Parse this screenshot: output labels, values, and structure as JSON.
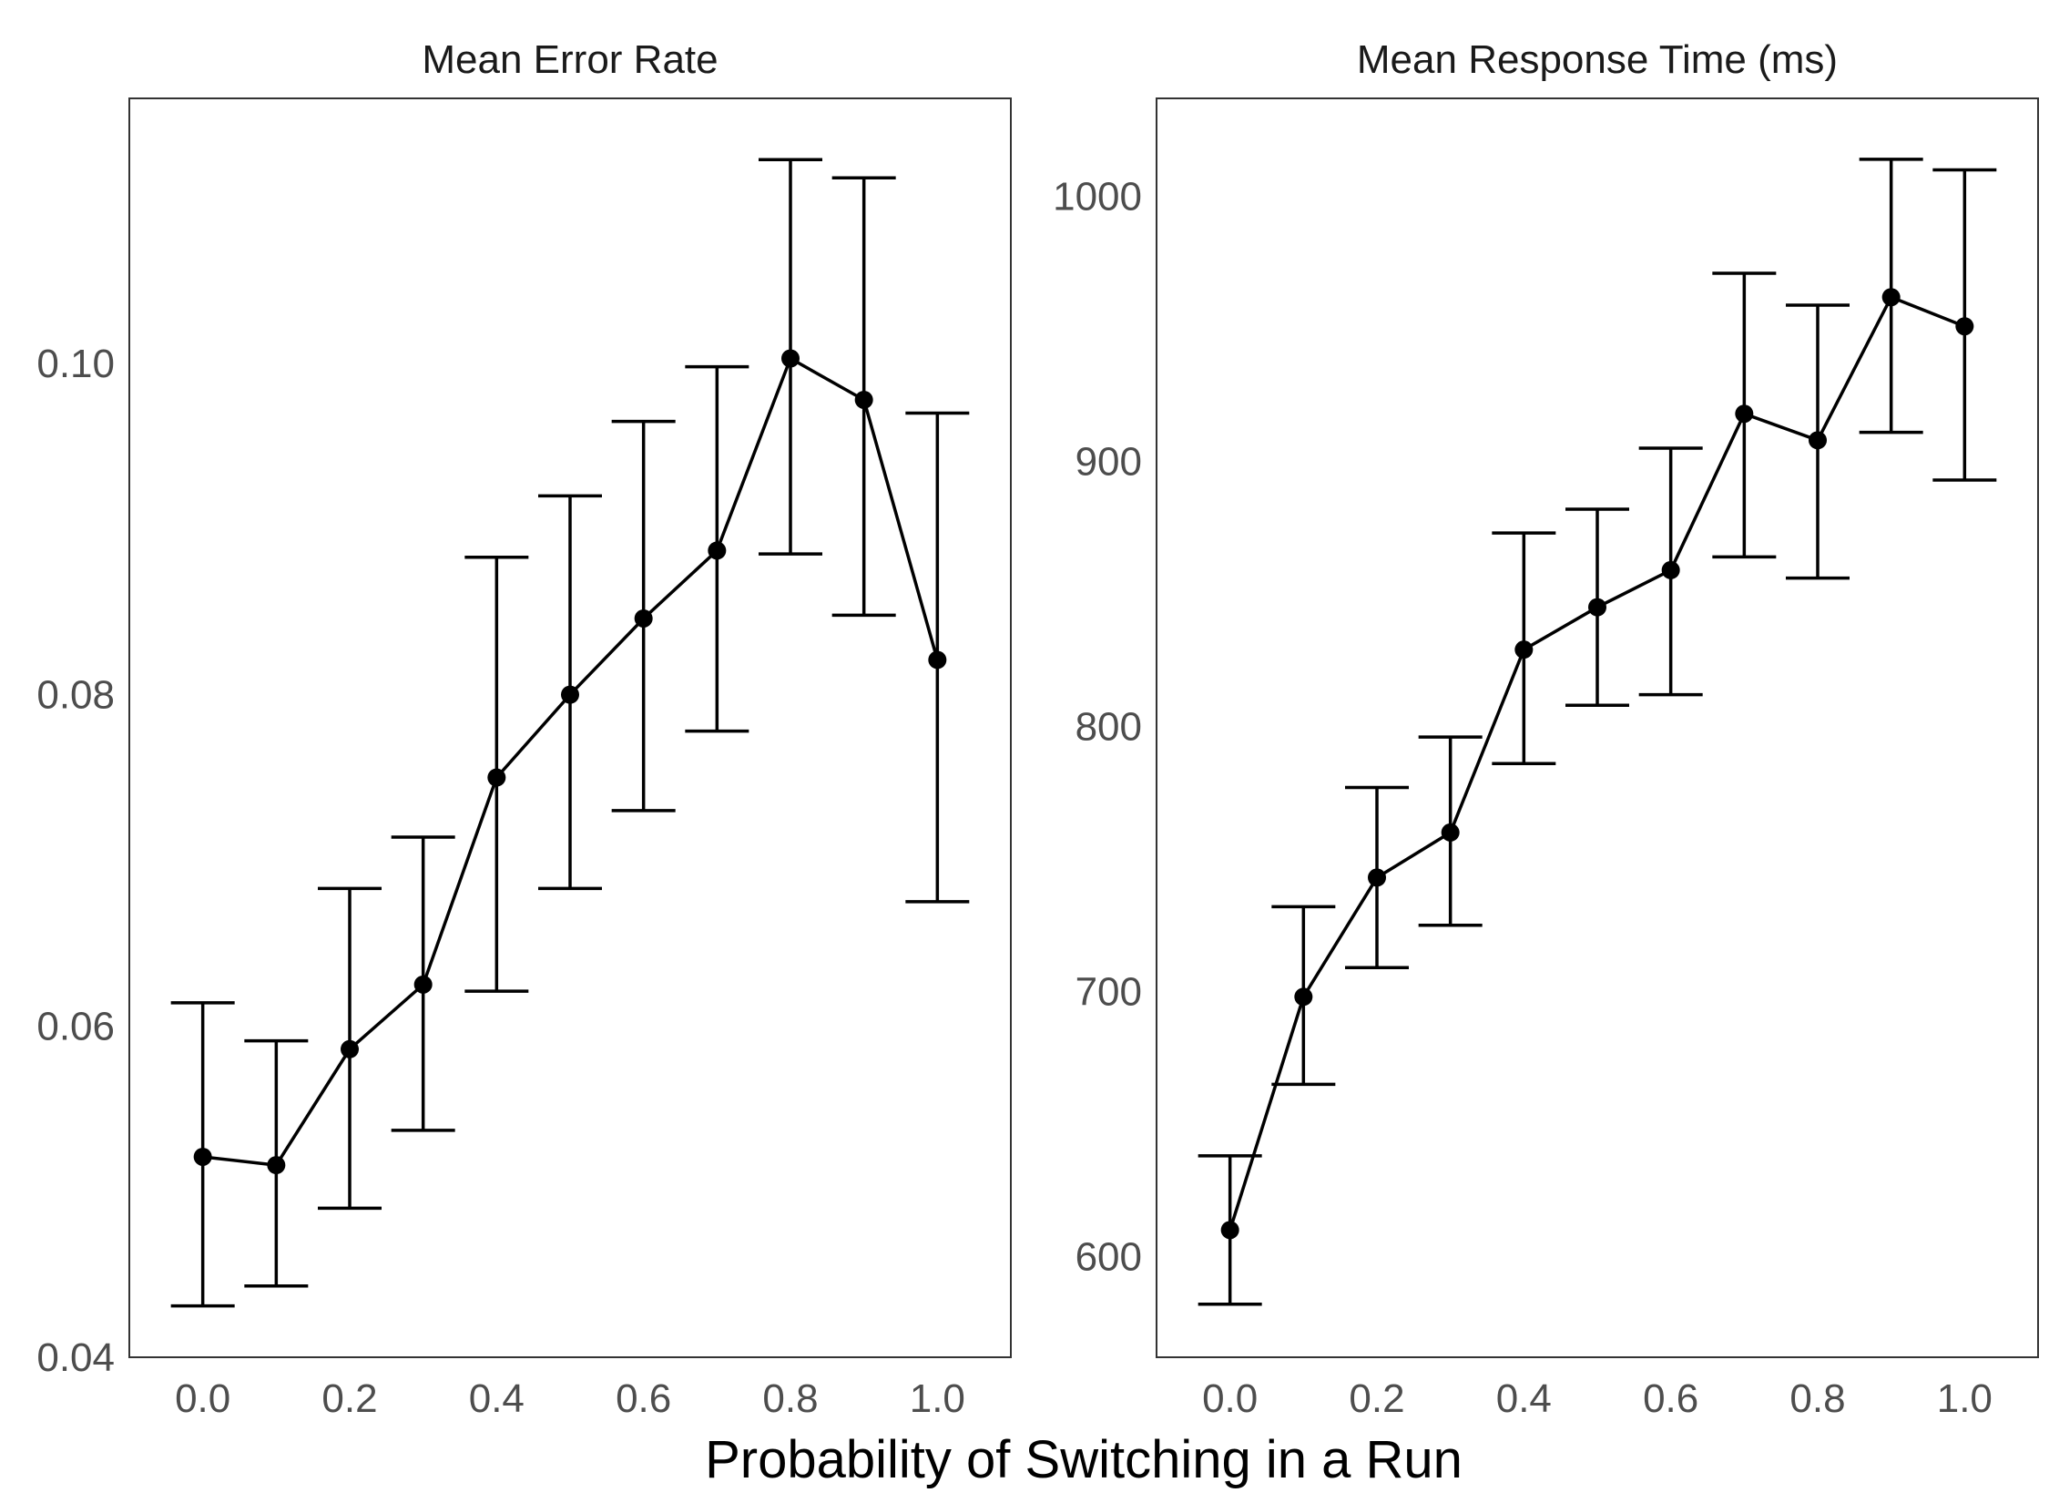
{
  "figure": {
    "xlabel": "Probability of Switching in a Run"
  },
  "chart_data": [
    {
      "type": "line",
      "title": "Mean Error Rate",
      "xlabel": "Probability of Switching in a Run",
      "ylabel": "",
      "xlim": [
        -0.1,
        1.1
      ],
      "ylim": [
        0.04,
        0.116
      ],
      "xticks": [
        0.0,
        0.2,
        0.4,
        0.6,
        0.8,
        1.0
      ],
      "xtick_labels": [
        "0.0",
        "0.2",
        "0.4",
        "0.6",
        "0.8",
        "1.0"
      ],
      "yticks": [
        0.04,
        0.06,
        0.08,
        0.1
      ],
      "ytick_labels": [
        "0.04",
        "0.06",
        "0.08",
        "0.10"
      ],
      "grid": false,
      "x": [
        0.0,
        0.1,
        0.2,
        0.3,
        0.4,
        0.5,
        0.6,
        0.7,
        0.8,
        0.9,
        1.0
      ],
      "series": [
        {
          "values": [
            0.0521,
            0.0516,
            0.0586,
            0.0625,
            0.075,
            0.08,
            0.0846,
            0.0887,
            0.1003,
            0.0978,
            0.0821
          ],
          "lower": [
            0.0431,
            0.0443,
            0.049,
            0.0537,
            0.0621,
            0.0683,
            0.073,
            0.0778,
            0.0885,
            0.0848,
            0.0675
          ],
          "upper": [
            0.0614,
            0.0591,
            0.0683,
            0.0714,
            0.0883,
            0.092,
            0.0965,
            0.0998,
            0.1123,
            0.1112,
            0.097
          ]
        }
      ]
    },
    {
      "type": "line",
      "title": "Mean Response Time (ms)",
      "xlabel": "Probability of Switching in a Run",
      "ylabel": "",
      "xlim": [
        -0.1,
        1.1
      ],
      "ylim": [
        562,
        1037
      ],
      "xticks": [
        0.0,
        0.2,
        0.4,
        0.6,
        0.8,
        1.0
      ],
      "xtick_labels": [
        "0.0",
        "0.2",
        "0.4",
        "0.6",
        "0.8",
        "1.0"
      ],
      "yticks": [
        600,
        700,
        800,
        900,
        1000
      ],
      "ytick_labels": [
        "600",
        "700",
        "800",
        "900",
        "1000"
      ],
      "grid": false,
      "x": [
        0.0,
        0.1,
        0.2,
        0.3,
        0.4,
        0.5,
        0.6,
        0.7,
        0.8,
        0.9,
        1.0
      ],
      "series": [
        {
          "values": [
            610,
            698,
            743,
            760,
            829,
            845,
            859,
            918,
            908,
            962,
            951
          ],
          "lower": [
            582,
            665,
            709,
            725,
            786,
            808,
            812,
            864,
            856,
            911,
            893
          ],
          "upper": [
            638,
            732,
            777,
            796,
            873,
            882,
            905,
            971,
            959,
            1014,
            1010
          ]
        }
      ]
    }
  ]
}
